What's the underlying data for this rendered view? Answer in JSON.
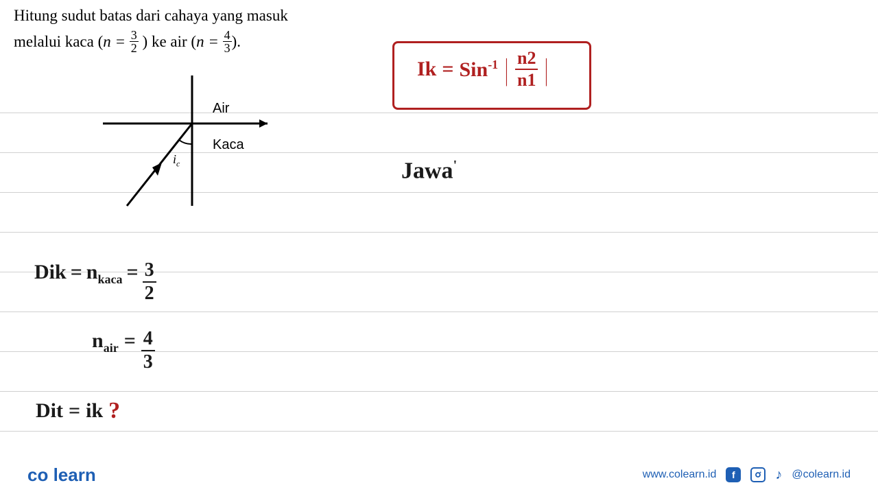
{
  "problem": {
    "line1": "Hitung sudut batas dari cahaya yang masuk",
    "line2_pre": "melalui kaca (",
    "line2_mid": ") ke air (",
    "line2_post": ").",
    "n_label": "n =",
    "n_glass_num": "3",
    "n_glass_den": "2",
    "n_air_num": "4",
    "n_air_den": "3"
  },
  "diagram": {
    "label_air": "Air",
    "label_glass": "Kaca",
    "label_angle": "i",
    "label_angle_sub": "c",
    "stroke": "#000000",
    "stroke_width": 2.5
  },
  "formula_box": {
    "lhs": "Ik",
    "eq": "=",
    "func": "Sin",
    "exp": "-1",
    "num": "n2",
    "den": "n1",
    "border_color": "#b02020",
    "text_color": "#b02020"
  },
  "work": {
    "jawab": "Jawa",
    "dik_label": "Dik",
    "n_kaca_label": "n",
    "n_kaca_sub": "kaca",
    "n_kaca_num": "3",
    "n_kaca_den": "2",
    "n_air_label": "n",
    "n_air_sub": "air",
    "n_air_num": "4",
    "n_air_den": "3",
    "dit_label": "Dit",
    "dit_var": "ik",
    "question_mark": "?",
    "eq": "="
  },
  "ruled_lines_y": [
    164,
    222,
    280,
    338,
    396,
    454,
    512,
    570,
    628
  ],
  "colors": {
    "rule": "#d0d0d0",
    "handwriting": "#1a1a1a",
    "red": "#b02020",
    "brand_blue": "#1e5fb4",
    "brand_orange": "#f7931e"
  },
  "footer": {
    "logo_a": "co",
    "logo_b": "learn",
    "url": "www.colearn.id",
    "handle": "@colearn.id"
  }
}
